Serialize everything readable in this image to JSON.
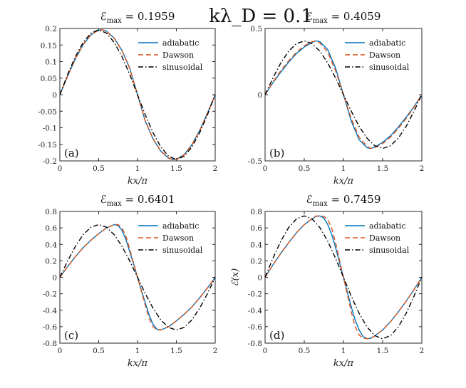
{
  "suptitle": "kλ_D = 0.1",
  "chart_data": [
    {
      "type": "line",
      "panel": "(a)",
      "title": "ℰ_max = 0.1959",
      "xlabel": "kx/π",
      "ylabel": "",
      "xlim": [
        0,
        2
      ],
      "ylim": [
        -0.2,
        0.2
      ],
      "xticks": [
        "0",
        "0.5",
        "1",
        "1.5",
        "2"
      ],
      "yticks": [
        "-0.2",
        "-0.15",
        "-0.1",
        "-0.05",
        "0",
        "0.05",
        "0.1",
        "0.15",
        "0.2"
      ],
      "legend": "top-right",
      "series": [
        {
          "name": "adiabatic",
          "color": "#0072BD",
          "dash": "solid",
          "x": [
            0,
            0.1,
            0.2,
            0.3,
            0.4,
            0.5,
            0.55,
            0.6,
            0.7,
            0.8,
            0.9,
            1.0,
            1.1,
            1.2,
            1.3,
            1.4,
            1.45,
            1.5,
            1.6,
            1.7,
            1.8,
            1.9,
            2.0
          ],
          "y": [
            0,
            0.056,
            0.108,
            0.151,
            0.181,
            0.195,
            0.196,
            0.192,
            0.171,
            0.134,
            0.08,
            0.0,
            -0.08,
            -0.134,
            -0.171,
            -0.192,
            -0.196,
            -0.195,
            -0.181,
            -0.151,
            -0.108,
            -0.056,
            0
          ]
        },
        {
          "name": "Dawson",
          "color": "#D95319",
          "dash": "dashed",
          "x": [
            0,
            0.1,
            0.2,
            0.3,
            0.4,
            0.5,
            0.55,
            0.6,
            0.7,
            0.8,
            0.9,
            1.0,
            1.1,
            1.2,
            1.3,
            1.4,
            1.45,
            1.5,
            1.6,
            1.7,
            1.8,
            1.9,
            2.0
          ],
          "y": [
            0,
            0.057,
            0.109,
            0.152,
            0.182,
            0.195,
            0.196,
            0.191,
            0.17,
            0.133,
            0.079,
            0.0,
            -0.079,
            -0.133,
            -0.17,
            -0.191,
            -0.196,
            -0.195,
            -0.182,
            -0.152,
            -0.109,
            -0.057,
            0
          ]
        },
        {
          "name": "sinusoidal",
          "color": "#000000",
          "dash": "dashdot",
          "x": [
            0,
            0.1,
            0.2,
            0.3,
            0.4,
            0.5,
            0.6,
            0.7,
            0.8,
            0.9,
            1.0,
            1.1,
            1.2,
            1.3,
            1.4,
            1.5,
            1.6,
            1.7,
            1.8,
            1.9,
            2.0
          ],
          "y": [
            0,
            0.061,
            0.115,
            0.158,
            0.186,
            0.196,
            0.186,
            0.158,
            0.115,
            0.061,
            0,
            -0.061,
            -0.115,
            -0.158,
            -0.186,
            -0.196,
            -0.186,
            -0.158,
            -0.115,
            -0.061,
            0
          ]
        }
      ]
    },
    {
      "type": "line",
      "panel": "(b)",
      "title": "ℰ_max = 0.4059",
      "xlabel": "kx/π",
      "ylabel": "",
      "xlim": [
        0,
        2
      ],
      "ylim": [
        -0.5,
        0.5
      ],
      "xticks": [
        "0",
        "0.5",
        "1",
        "1.5",
        "2"
      ],
      "yticks": [
        "-0.5",
        "0",
        "0.5"
      ],
      "legend": "top-right",
      "series": [
        {
          "name": "adiabatic",
          "color": "#0072BD",
          "dash": "solid",
          "x": [
            0,
            0.1,
            0.2,
            0.3,
            0.4,
            0.5,
            0.6,
            0.65,
            0.7,
            0.8,
            0.9,
            1.0,
            1.1,
            1.2,
            1.3,
            1.35,
            1.4,
            1.5,
            1.6,
            1.7,
            1.8,
            1.9,
            2.0
          ],
          "y": [
            0,
            0.09,
            0.17,
            0.245,
            0.31,
            0.36,
            0.395,
            0.406,
            0.4,
            0.34,
            0.2,
            0.0,
            -0.2,
            -0.34,
            -0.4,
            -0.406,
            -0.395,
            -0.36,
            -0.31,
            -0.245,
            -0.17,
            -0.09,
            0
          ]
        },
        {
          "name": "Dawson",
          "color": "#D95319",
          "dash": "dashed",
          "x": [
            0,
            0.1,
            0.2,
            0.3,
            0.4,
            0.5,
            0.6,
            0.65,
            0.7,
            0.8,
            0.9,
            1.0,
            1.1,
            1.2,
            1.3,
            1.35,
            1.4,
            1.5,
            1.6,
            1.7,
            1.8,
            1.9,
            2.0
          ],
          "y": [
            0,
            0.095,
            0.18,
            0.255,
            0.32,
            0.37,
            0.4,
            0.406,
            0.39,
            0.32,
            0.18,
            0.0,
            -0.18,
            -0.32,
            -0.39,
            -0.406,
            -0.4,
            -0.37,
            -0.32,
            -0.255,
            -0.18,
            -0.095,
            0
          ]
        },
        {
          "name": "sinusoidal",
          "color": "#000000",
          "dash": "dashdot",
          "x": [
            0,
            0.1,
            0.2,
            0.3,
            0.4,
            0.5,
            0.6,
            0.7,
            0.8,
            0.9,
            1.0,
            1.1,
            1.2,
            1.3,
            1.4,
            1.5,
            1.6,
            1.7,
            1.8,
            1.9,
            2.0
          ],
          "y": [
            0,
            0.125,
            0.239,
            0.328,
            0.386,
            0.406,
            0.386,
            0.328,
            0.239,
            0.125,
            0,
            -0.125,
            -0.239,
            -0.328,
            -0.386,
            -0.406,
            -0.386,
            -0.328,
            -0.239,
            -0.125,
            0
          ]
        }
      ]
    },
    {
      "type": "line",
      "panel": "(c)",
      "title": "ℰ_max = 0.6401",
      "xlabel": "kx/π",
      "ylabel": "",
      "xlim": [
        0,
        2
      ],
      "ylim": [
        -0.8,
        0.8
      ],
      "xticks": [
        "0",
        "0.5",
        "1",
        "1.5",
        "2"
      ],
      "yticks": [
        "-0.8",
        "-0.6",
        "-0.4",
        "-0.2",
        "0",
        "0.2",
        "0.4",
        "0.6",
        "0.8"
      ],
      "legend": "top-right",
      "series": [
        {
          "name": "adiabatic",
          "color": "#0072BD",
          "dash": "solid",
          "x": [
            0,
            0.1,
            0.2,
            0.3,
            0.4,
            0.5,
            0.6,
            0.7,
            0.75,
            0.8,
            0.85,
            0.9,
            0.95,
            1.0,
            1.05,
            1.1,
            1.15,
            1.2,
            1.25,
            1.3,
            1.4,
            1.5,
            1.6,
            1.7,
            1.8,
            1.9,
            2.0
          ],
          "y": [
            0,
            0.13,
            0.25,
            0.36,
            0.45,
            0.53,
            0.6,
            0.64,
            0.63,
            0.57,
            0.46,
            0.31,
            0.16,
            0.0,
            -0.16,
            -0.31,
            -0.46,
            -0.57,
            -0.63,
            -0.64,
            -0.6,
            -0.53,
            -0.45,
            -0.36,
            -0.25,
            -0.13,
            0
          ]
        },
        {
          "name": "Dawson",
          "color": "#D95319",
          "dash": "dashed",
          "x": [
            0,
            0.1,
            0.2,
            0.3,
            0.4,
            0.5,
            0.6,
            0.7,
            0.75,
            0.8,
            0.85,
            0.9,
            0.95,
            1.0,
            1.05,
            1.1,
            1.15,
            1.2,
            1.25,
            1.3,
            1.4,
            1.5,
            1.6,
            1.7,
            1.8,
            1.9,
            2.0
          ],
          "y": [
            0,
            0.13,
            0.25,
            0.36,
            0.45,
            0.53,
            0.6,
            0.64,
            0.64,
            0.6,
            0.5,
            0.34,
            0.17,
            0.0,
            -0.17,
            -0.34,
            -0.5,
            -0.6,
            -0.64,
            -0.64,
            -0.6,
            -0.53,
            -0.45,
            -0.36,
            -0.25,
            -0.13,
            0
          ]
        },
        {
          "name": "sinusoidal",
          "color": "#000000",
          "dash": "dashdot",
          "x": [
            0,
            0.1,
            0.2,
            0.3,
            0.4,
            0.5,
            0.6,
            0.7,
            0.8,
            0.9,
            1.0,
            1.1,
            1.2,
            1.3,
            1.4,
            1.5,
            1.6,
            1.7,
            1.8,
            1.9,
            2.0
          ],
          "y": [
            0,
            0.198,
            0.376,
            0.518,
            0.609,
            0.64,
            0.609,
            0.518,
            0.376,
            0.198,
            0,
            -0.198,
            -0.376,
            -0.518,
            -0.609,
            -0.64,
            -0.609,
            -0.518,
            -0.376,
            -0.198,
            0
          ]
        }
      ]
    },
    {
      "type": "line",
      "panel": "(d)",
      "title": "ℰ_max = 0.7459",
      "xlabel": "kx/π",
      "ylabel": "ℰ(x)",
      "xlim": [
        0,
        2
      ],
      "ylim": [
        -0.8,
        0.8
      ],
      "xticks": [
        "0",
        "0.5",
        "1",
        "1.5",
        "2"
      ],
      "yticks": [
        "-0.8",
        "-0.6",
        "-0.4",
        "-0.2",
        "0",
        "0.2",
        "0.4",
        "0.6",
        "0.8"
      ],
      "legend": "top-right",
      "series": [
        {
          "name": "adiabatic",
          "color": "#0072BD",
          "dash": "solid",
          "x": [
            0,
            0.1,
            0.2,
            0.3,
            0.4,
            0.5,
            0.6,
            0.65,
            0.7,
            0.75,
            0.8,
            0.85,
            0.9,
            0.95,
            1.0,
            1.05,
            1.1,
            1.15,
            1.2,
            1.25,
            1.3,
            1.35,
            1.4,
            1.5,
            1.6,
            1.7,
            1.8,
            1.9,
            2.0
          ],
          "y": [
            0,
            0.15,
            0.29,
            0.42,
            0.54,
            0.64,
            0.71,
            0.74,
            0.745,
            0.72,
            0.64,
            0.52,
            0.36,
            0.18,
            0.0,
            -0.18,
            -0.36,
            -0.52,
            -0.64,
            -0.72,
            -0.745,
            -0.74,
            -0.71,
            -0.64,
            -0.54,
            -0.42,
            -0.29,
            -0.15,
            0
          ]
        },
        {
          "name": "Dawson",
          "color": "#D95319",
          "dash": "dashed",
          "x": [
            0,
            0.1,
            0.2,
            0.3,
            0.4,
            0.5,
            0.6,
            0.65,
            0.7,
            0.75,
            0.8,
            0.85,
            0.9,
            0.95,
            1.0,
            1.05,
            1.1,
            1.15,
            1.2,
            1.25,
            1.3,
            1.35,
            1.4,
            1.5,
            1.6,
            1.7,
            1.8,
            1.9,
            2.0
          ],
          "y": [
            0,
            0.15,
            0.29,
            0.42,
            0.54,
            0.64,
            0.71,
            0.745,
            0.745,
            0.74,
            0.7,
            0.6,
            0.42,
            0.21,
            0.0,
            -0.21,
            -0.42,
            -0.6,
            -0.7,
            -0.74,
            -0.745,
            -0.745,
            -0.71,
            -0.64,
            -0.54,
            -0.42,
            -0.29,
            -0.15,
            0
          ]
        },
        {
          "name": "sinusoidal",
          "color": "#000000",
          "dash": "dashdot",
          "x": [
            0,
            0.1,
            0.2,
            0.3,
            0.4,
            0.5,
            0.6,
            0.7,
            0.8,
            0.9,
            1.0,
            1.1,
            1.2,
            1.3,
            1.4,
            1.5,
            1.6,
            1.7,
            1.8,
            1.9,
            2.0
          ],
          "y": [
            0,
            0.23,
            0.438,
            0.603,
            0.709,
            0.746,
            0.709,
            0.603,
            0.438,
            0.23,
            0,
            -0.23,
            -0.438,
            -0.603,
            -0.709,
            -0.746,
            -0.709,
            -0.603,
            -0.438,
            -0.23,
            0
          ]
        }
      ]
    }
  ]
}
